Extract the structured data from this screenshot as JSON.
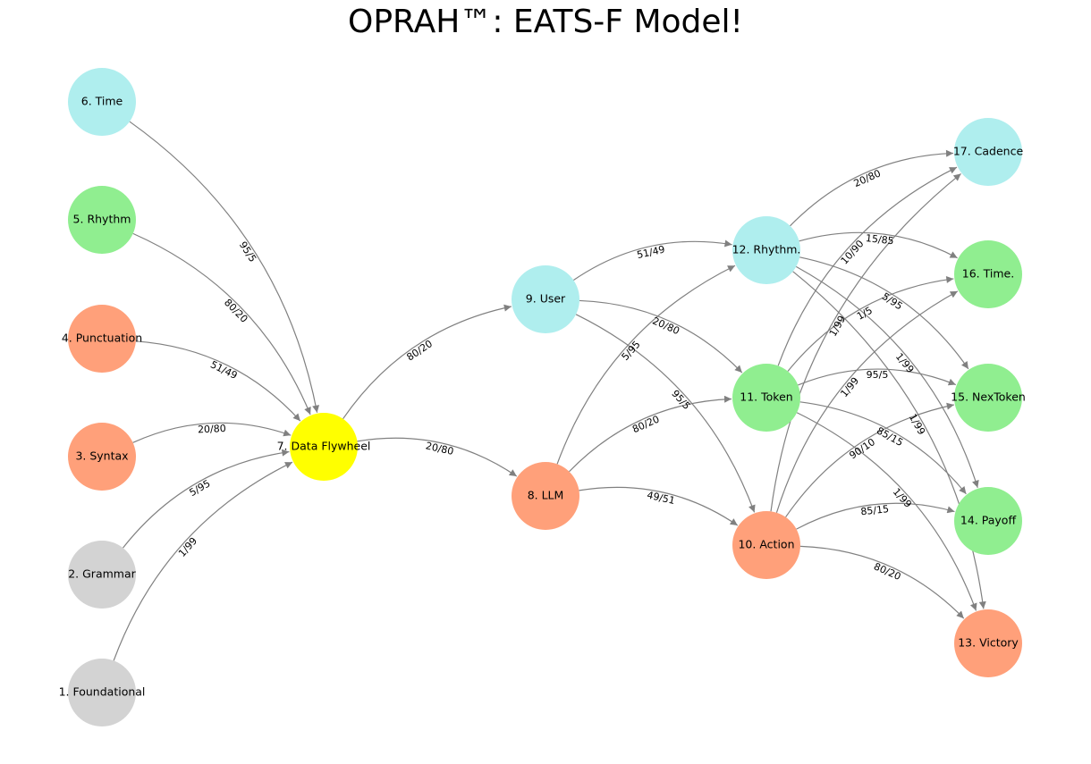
{
  "title": "OPRAH™: EATS-F Model!",
  "colors": {
    "gray": "#d3d3d3",
    "salmon": "#ffa07a",
    "green": "#90ee90",
    "cyan": "#afeeee",
    "yellow": "#ffff00",
    "edge": "#808080"
  },
  "nodes": [
    {
      "id": 1,
      "label": "1. Foundational",
      "color": "gray"
    },
    {
      "id": 2,
      "label": "2. Grammar",
      "color": "gray"
    },
    {
      "id": 3,
      "label": "3. Syntax",
      "color": "salmon"
    },
    {
      "id": 4,
      "label": "4. Punctuation",
      "color": "salmon"
    },
    {
      "id": 5,
      "label": "5. Rhythm",
      "color": "green"
    },
    {
      "id": 6,
      "label": "6. Time",
      "color": "cyan"
    },
    {
      "id": 7,
      "label": "7. Data Flywheel",
      "color": "yellow"
    },
    {
      "id": 8,
      "label": "8. LLM",
      "color": "salmon"
    },
    {
      "id": 9,
      "label": "9. User",
      "color": "cyan"
    },
    {
      "id": 10,
      "label": "10. Action",
      "color": "salmon"
    },
    {
      "id": 11,
      "label": "11. Token",
      "color": "green"
    },
    {
      "id": 12,
      "label": "12. Rhythm.",
      "color": "cyan"
    },
    {
      "id": 13,
      "label": "13. Victory",
      "color": "salmon"
    },
    {
      "id": 14,
      "label": "14. Payoff",
      "color": "green"
    },
    {
      "id": 15,
      "label": "15. NexToken",
      "color": "green"
    },
    {
      "id": 16,
      "label": "16. Time.",
      "color": "green"
    },
    {
      "id": 17,
      "label": "17. Cadence",
      "color": "cyan"
    }
  ],
  "edges": [
    {
      "from": 1,
      "to": 7,
      "label": "1/99"
    },
    {
      "from": 2,
      "to": 7,
      "label": "5/95"
    },
    {
      "from": 3,
      "to": 7,
      "label": "20/80"
    },
    {
      "from": 4,
      "to": 7,
      "label": "51/49"
    },
    {
      "from": 5,
      "to": 7,
      "label": "80/20"
    },
    {
      "from": 6,
      "to": 7,
      "label": "95/5"
    },
    {
      "from": 7,
      "to": 8,
      "label": "20/80"
    },
    {
      "from": 7,
      "to": 9,
      "label": "80/20"
    },
    {
      "from": 8,
      "to": 10,
      "label": "49/51"
    },
    {
      "from": 8,
      "to": 11,
      "label": "80/20"
    },
    {
      "from": 8,
      "to": 12,
      "label": "5/95"
    },
    {
      "from": 9,
      "to": 10,
      "label": "95/5"
    },
    {
      "from": 9,
      "to": 11,
      "label": "20/80"
    },
    {
      "from": 9,
      "to": 12,
      "label": "51/49"
    },
    {
      "from": 10,
      "to": 13,
      "label": "80/20"
    },
    {
      "from": 10,
      "to": 14,
      "label": "85/15"
    },
    {
      "from": 10,
      "to": 15,
      "label": "90/10"
    },
    {
      "from": 10,
      "to": 16,
      "label": "1/99"
    },
    {
      "from": 10,
      "to": 17,
      "label": "1/99"
    },
    {
      "from": 11,
      "to": 13,
      "label": "1/99"
    },
    {
      "from": 11,
      "to": 14,
      "label": "85/15"
    },
    {
      "from": 11,
      "to": 15,
      "label": "95/5"
    },
    {
      "from": 11,
      "to": 16,
      "label": "1/5"
    },
    {
      "from": 11,
      "to": 17,
      "label": "10/90"
    },
    {
      "from": 12,
      "to": 13,
      "label": "1/99"
    },
    {
      "from": 12,
      "to": 14,
      "label": "1/99"
    },
    {
      "from": 12,
      "to": 15,
      "label": "5/95"
    },
    {
      "from": 12,
      "to": 16,
      "label": "15/85"
    },
    {
      "from": 12,
      "to": 17,
      "label": "20/80"
    }
  ]
}
